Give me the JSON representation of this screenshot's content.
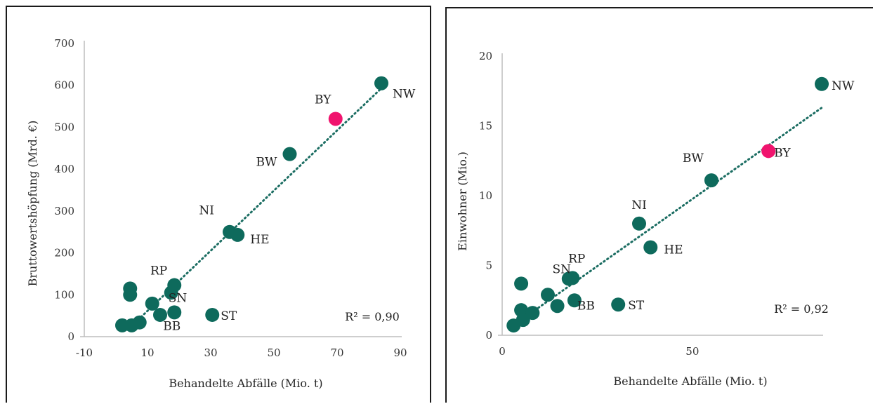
{
  "colors": {
    "marker": "#0e6a5c",
    "highlight": "#f0146e",
    "highlight_text": "#e8174b",
    "trend": "#1b6d62",
    "axis": "#bdbdbd"
  },
  "chart_data": [
    {
      "type": "scatter",
      "xlabel": "Behandelte Abfälle (Mio. t)",
      "ylabel": "Bruttowertshöpfung (Mrd. €)",
      "xlim": [
        -10,
        90
      ],
      "ylim": [
        0,
        700
      ],
      "xticks": [
        -10,
        10,
        30,
        50,
        70,
        90
      ],
      "yticks": [
        0,
        100,
        200,
        300,
        400,
        500,
        600,
        700
      ],
      "annotation": "R² = 0,90",
      "trendline": {
        "style": "dotted",
        "x": [
          7,
          84
        ],
        "y": [
          40,
          593
        ]
      },
      "points": [
        {
          "x": 84,
          "y": 605,
          "label": "NW",
          "highlight": false
        },
        {
          "x": 69.5,
          "y": 520,
          "label": "BY",
          "highlight": true
        },
        {
          "x": 55,
          "y": 436,
          "label": "BW",
          "highlight": false
        },
        {
          "x": 36,
          "y": 250,
          "label": "NI",
          "highlight": false
        },
        {
          "x": 38.5,
          "y": 243,
          "label": "HE",
          "highlight": false
        },
        {
          "x": 18.5,
          "y": 123,
          "label": "RP",
          "highlight": false
        },
        {
          "x": 17.5,
          "y": 105,
          "label": "SN",
          "highlight": false
        },
        {
          "x": 30.5,
          "y": 52,
          "label": "ST",
          "highlight": false
        },
        {
          "x": 18.5,
          "y": 58,
          "label": "BB",
          "highlight": false
        },
        {
          "x": 4.5,
          "y": 115,
          "label": "",
          "highlight": false
        },
        {
          "x": 4.5,
          "y": 100,
          "label": "",
          "highlight": false
        },
        {
          "x": 11.5,
          "y": 79,
          "label": "",
          "highlight": false
        },
        {
          "x": 14,
          "y": 52,
          "label": "",
          "highlight": false
        },
        {
          "x": 7.5,
          "y": 34,
          "label": "",
          "highlight": false
        },
        {
          "x": 5,
          "y": 27,
          "label": "",
          "highlight": false
        },
        {
          "x": 2,
          "y": 27,
          "label": "",
          "highlight": false
        }
      ]
    },
    {
      "type": "scatter",
      "xlabel": "Behandelte Abfälle (Mio. t)",
      "ylabel": "Einwohner (Mio.)",
      "xlim": [
        0,
        84
      ],
      "ylim": [
        0,
        20
      ],
      "xticks": [
        0,
        50
      ],
      "yticks": [
        0,
        5,
        10,
        15,
        20
      ],
      "annotation": "R² = 0,92",
      "trendline": {
        "style": "dotted",
        "x": [
          5,
          84
        ],
        "y": [
          1.1,
          16.3
        ]
      },
      "points": [
        {
          "x": 84,
          "y": 18,
          "label": "NW",
          "highlight": false
        },
        {
          "x": 70,
          "y": 13.2,
          "label": "BY",
          "highlight": true
        },
        {
          "x": 55,
          "y": 11.1,
          "label": "BW",
          "highlight": false
        },
        {
          "x": 36,
          "y": 8,
          "label": "NI",
          "highlight": false
        },
        {
          "x": 39,
          "y": 6.3,
          "label": "HE",
          "highlight": false
        },
        {
          "x": 18.5,
          "y": 4.1,
          "label": "RP",
          "highlight": false
        },
        {
          "x": 17.5,
          "y": 4.05,
          "label": "SN",
          "highlight": false
        },
        {
          "x": 30.5,
          "y": 2.2,
          "label": "ST",
          "highlight": false
        },
        {
          "x": 19,
          "y": 2.5,
          "label": "BB",
          "highlight": false
        },
        {
          "x": 5,
          "y": 3.7,
          "label": "",
          "highlight": false
        },
        {
          "x": 12,
          "y": 2.9,
          "label": "",
          "highlight": false
        },
        {
          "x": 14.5,
          "y": 2.1,
          "label": "",
          "highlight": false
        },
        {
          "x": 5,
          "y": 1.8,
          "label": "",
          "highlight": false
        },
        {
          "x": 8,
          "y": 1.6,
          "label": "",
          "highlight": false
        },
        {
          "x": 5.5,
          "y": 1.1,
          "label": "",
          "highlight": false
        },
        {
          "x": 3,
          "y": 0.7,
          "label": "",
          "highlight": false
        }
      ]
    }
  ]
}
